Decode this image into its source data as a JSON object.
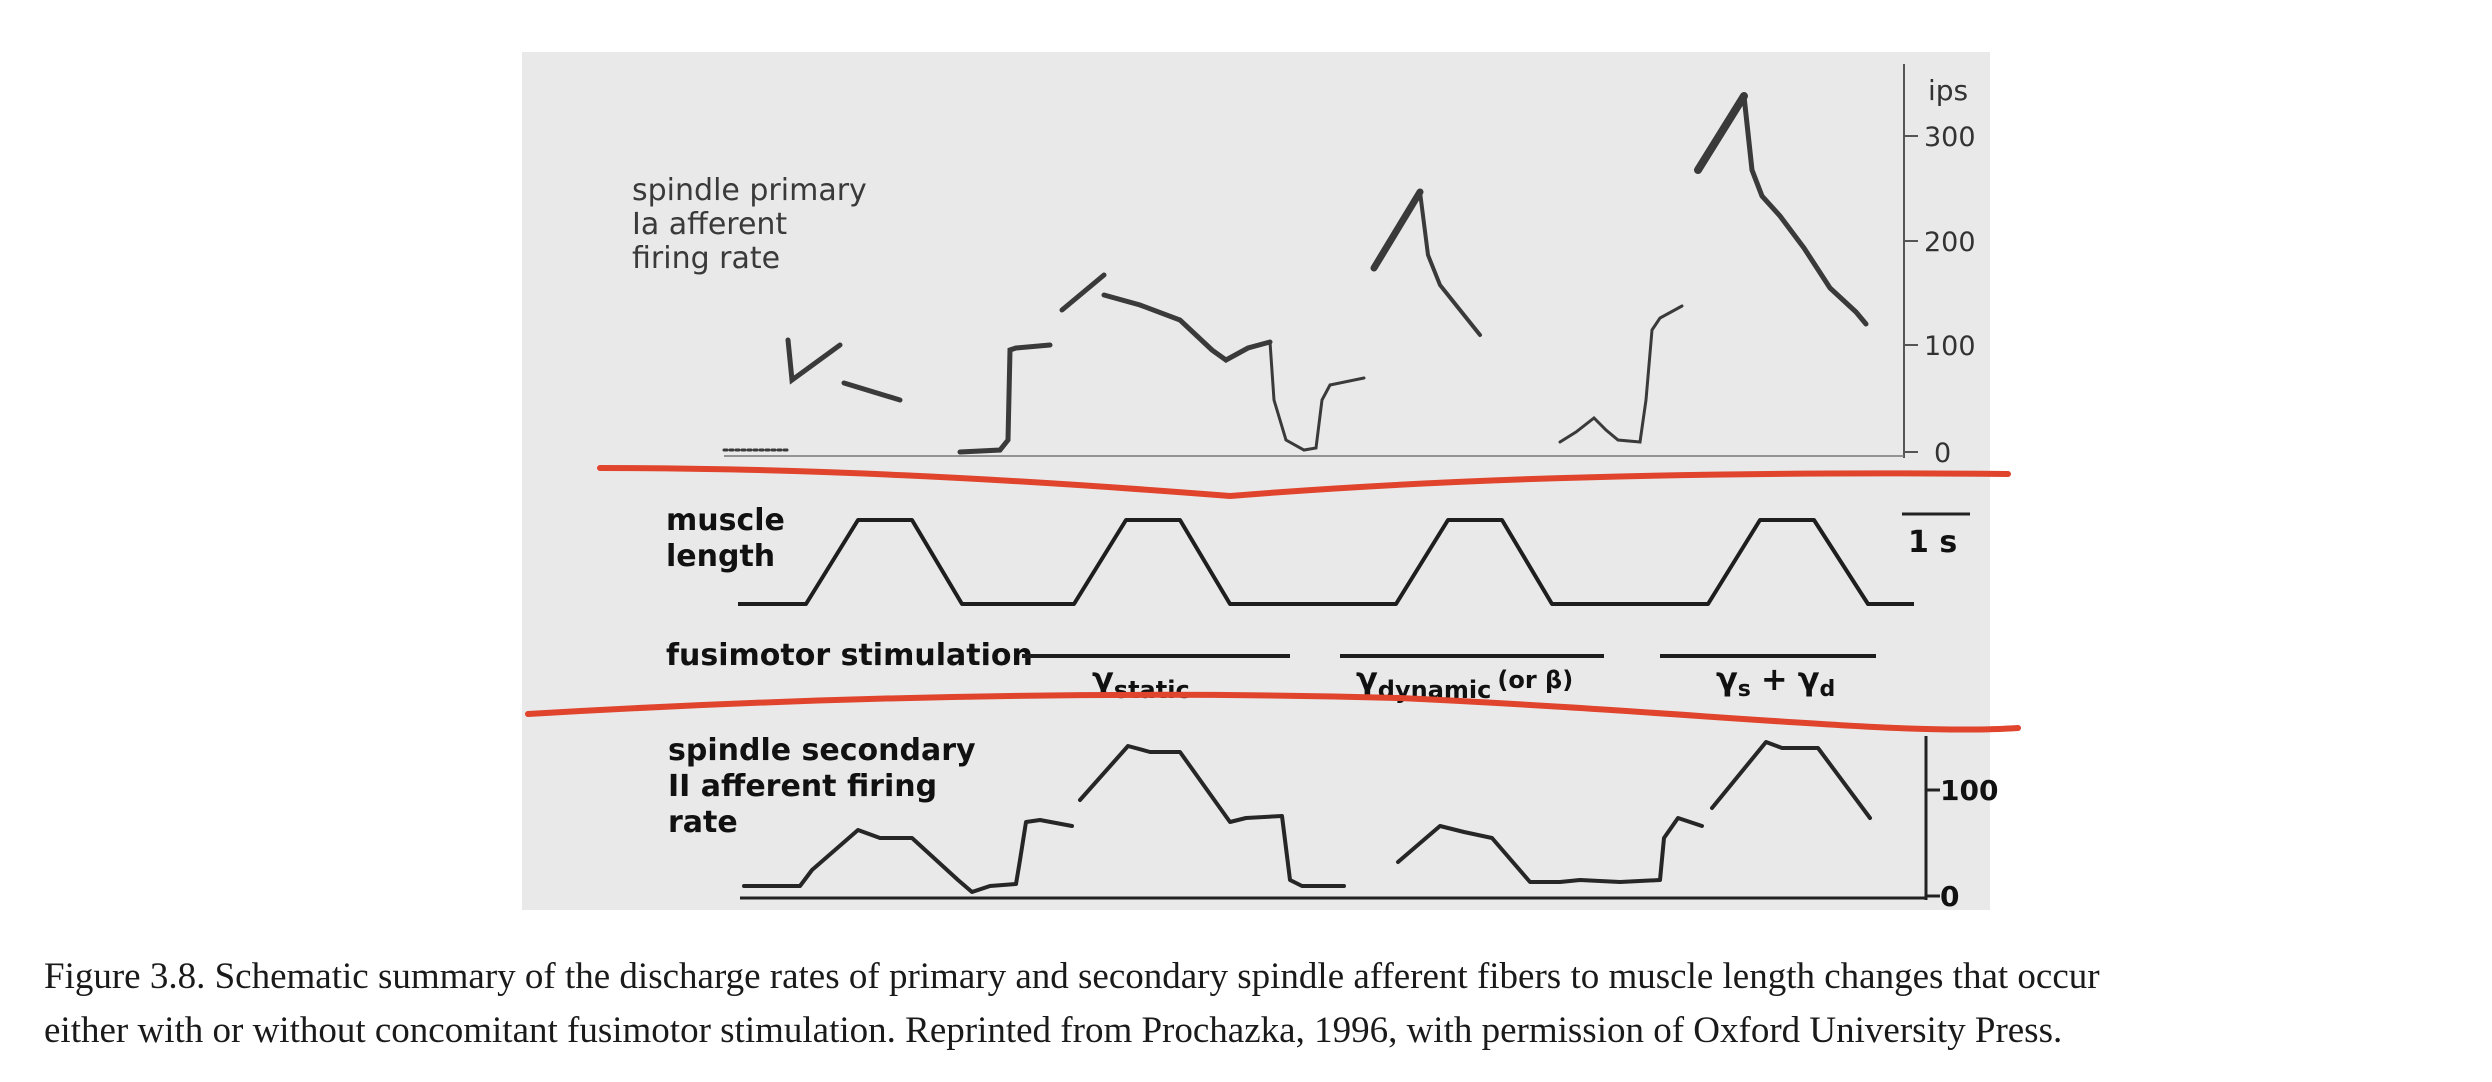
{
  "figure": {
    "top_panel": {
      "label_lines": [
        "spindle primary",
        "Ia afferent",
        "firing rate"
      ],
      "unit": "ips",
      "ticks": [
        "300",
        "200",
        "100",
        "0"
      ]
    },
    "middle_panel": {
      "muscle_label_lines": [
        "muscle",
        "length"
      ],
      "scale_bar_label": "1 s",
      "fusimotor_label": "fusimotor stimulation",
      "stim_labels": {
        "static_main": "γ",
        "static_sub": "static",
        "dynamic_main": "γ",
        "dynamic_sub": "dynamic",
        "dynamic_extra": "(or β)",
        "combined_a": "γ",
        "combined_a_sub": "s",
        "combined_plus": "+",
        "combined_b": "γ",
        "combined_b_sub": "d"
      }
    },
    "bottom_panel": {
      "label_lines": [
        "spindle secondary",
        "II afferent firing",
        "rate"
      ],
      "ticks": [
        "100",
        "0"
      ]
    },
    "annotation_color": "#e0442c",
    "trace_color": "#2e2e2e",
    "panel_background": "#e9e9e9"
  },
  "caption": {
    "line1": "Figure 3.8. Schematic summary of the discharge rates of primary and secondary spindle afferent fibers to muscle length changes that occur",
    "line2": "either with or without concomitant fusimotor stimulation. Reprinted from Prochazka, 1996, with permission of Oxford University Press."
  }
}
